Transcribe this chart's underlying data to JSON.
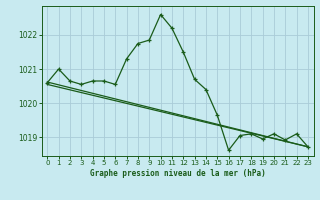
{
  "title": "Graphe pression niveau de la mer (hPa)",
  "bg_color": "#c8eaf0",
  "grid_color": "#aaccd8",
  "line_color": "#1a5c1a",
  "xlim": [
    -0.5,
    23.5
  ],
  "ylim": [
    1018.45,
    1022.85
  ],
  "yticks": [
    1019,
    1020,
    1021,
    1022
  ],
  "xticks": [
    0,
    1,
    2,
    3,
    4,
    5,
    6,
    7,
    8,
    9,
    10,
    11,
    12,
    13,
    14,
    15,
    16,
    17,
    18,
    19,
    20,
    21,
    22,
    23
  ],
  "series1_x": [
    0,
    1,
    2,
    3,
    4,
    5,
    6,
    7,
    8,
    9,
    10,
    11,
    12,
    13,
    14,
    15,
    16,
    17,
    18,
    19,
    20,
    21,
    22,
    23
  ],
  "series1_y": [
    1020.6,
    1021.0,
    1020.65,
    1020.55,
    1020.65,
    1020.65,
    1020.55,
    1021.3,
    1021.75,
    1021.85,
    1022.6,
    1022.2,
    1021.5,
    1020.7,
    1020.4,
    1019.65,
    1018.62,
    1019.05,
    1019.1,
    1018.95,
    1019.1,
    1018.92,
    1019.1,
    1018.72
  ],
  "series2_x": [
    0,
    23
  ],
  "series2_y": [
    1020.62,
    1018.72
  ],
  "series3_x": [
    0,
    23
  ],
  "series3_y": [
    1020.55,
    1018.72
  ]
}
